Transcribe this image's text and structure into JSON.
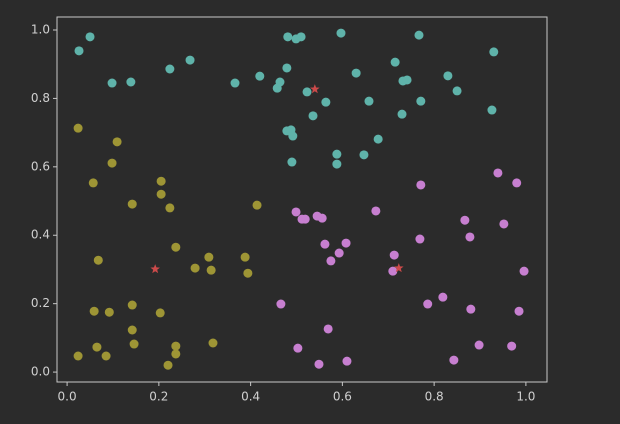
{
  "chart_data": {
    "type": "scatter",
    "xlim": [
      -0.022,
      1.046
    ],
    "ylim": [
      -0.029,
      1.038
    ],
    "xticks": [
      {
        "value": 0,
        "label": "0.0"
      },
      0.2,
      0.4,
      0.6,
      0.8,
      {
        "value": 1,
        "label": "1.0"
      }
    ],
    "yticks": [
      {
        "value": 0,
        "label": "0.0"
      },
      0.2,
      0.4,
      0.6,
      0.8,
      {
        "value": 1,
        "label": "1.0"
      }
    ],
    "grid": false,
    "series": [
      {
        "color": "#5fb3aa",
        "marker": "circle",
        "x": [
          0.026,
          0.05,
          0.098,
          0.139,
          0.224,
          0.268,
          0.366,
          0.42,
          0.458,
          0.464,
          0.479,
          0.481,
          0.499,
          0.51,
          0.479,
          0.488,
          0.492,
          0.49,
          0.523,
          0.536,
          0.564,
          0.597,
          0.63,
          0.588,
          0.588,
          0.647,
          0.658,
          0.678,
          0.715,
          0.73,
          0.732,
          0.741,
          0.767,
          0.771,
          0.83,
          0.85,
          0.926,
          0.93
        ],
        "values": [
          0.939,
          0.98,
          0.845,
          0.848,
          0.886,
          0.912,
          0.845,
          0.865,
          0.83,
          0.848,
          0.889,
          0.98,
          0.974,
          0.98,
          0.705,
          0.708,
          0.69,
          0.614,
          0.819,
          0.749,
          0.789,
          0.991,
          0.874,
          0.637,
          0.608,
          0.635,
          0.792,
          0.681,
          0.906,
          0.754,
          0.851,
          0.854,
          0.985,
          0.792,
          0.866,
          0.822,
          0.766,
          0.936
        ]
      },
      {
        "color": "#9e9535",
        "marker": "circle",
        "x": [
          0.024,
          0.057,
          0.068,
          0.098,
          0.109,
          0.142,
          0.205,
          0.205,
          0.224,
          0.237,
          0.279,
          0.309,
          0.314,
          0.414,
          0.388,
          0.394,
          0.024,
          0.059,
          0.065,
          0.085,
          0.092,
          0.142,
          0.142,
          0.146,
          0.203,
          0.22,
          0.237,
          0.237,
          0.318
        ],
        "values": [
          0.713,
          0.553,
          0.327,
          0.611,
          0.673,
          0.491,
          0.558,
          0.52,
          0.48,
          0.365,
          0.304,
          0.336,
          0.298,
          0.488,
          0.336,
          0.289,
          0.047,
          0.178,
          0.073,
          0.047,
          0.175,
          0.196,
          0.123,
          0.082,
          0.173,
          0.02,
          0.053,
          0.076,
          0.085
        ]
      },
      {
        "color": "#c77fd0",
        "marker": "circle",
        "x": [
          0.466,
          0.499,
          0.512,
          0.519,
          0.545,
          0.556,
          0.562,
          0.575,
          0.593,
          0.608,
          0.569,
          0.503,
          0.549,
          0.61,
          0.673,
          0.71,
          0.713,
          0.771,
          0.769,
          0.786,
          0.819,
          0.843,
          0.867,
          0.878,
          0.88,
          0.898,
          0.939,
          0.952,
          0.98,
          0.985,
          0.996,
          0.969
        ],
        "values": [
          0.199,
          0.468,
          0.447,
          0.447,
          0.456,
          0.45,
          0.374,
          0.325,
          0.348,
          0.377,
          0.126,
          0.07,
          0.023,
          0.032,
          0.471,
          0.295,
          0.342,
          0.547,
          0.389,
          0.199,
          0.219,
          0.035,
          0.444,
          0.395,
          0.184,
          0.079,
          0.582,
          0.433,
          0.553,
          0.178,
          0.295,
          0.076
        ]
      },
      {
        "color": "#cc4a4a",
        "marker": "star",
        "x": [
          0.192,
          0.54,
          0.723
        ],
        "values": [
          0.301,
          0.827,
          0.304
        ]
      }
    ]
  }
}
